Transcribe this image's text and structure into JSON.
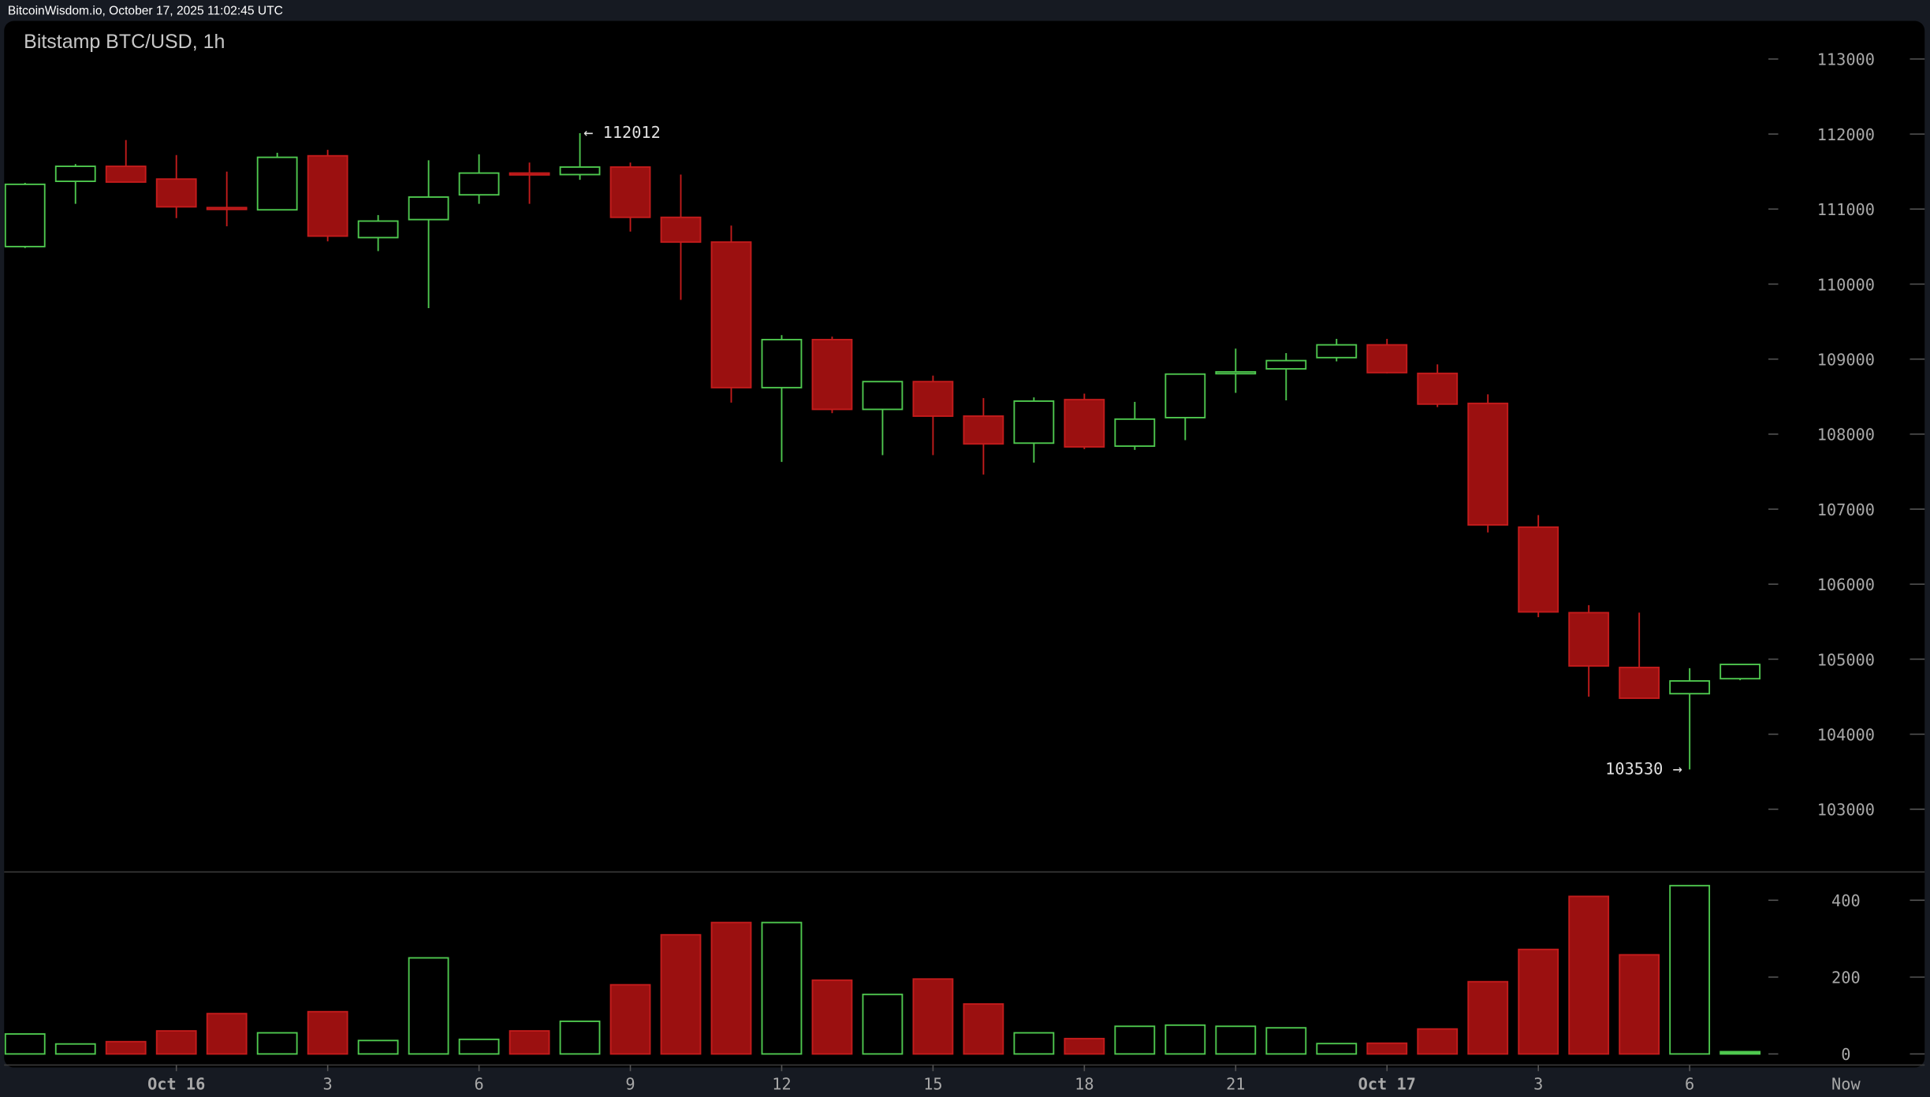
{
  "header": {
    "text": "BitcoinWisdom.io, October 17, 2025 11:02:45 UTC"
  },
  "chart_data": {
    "type": "candlestick",
    "title": "Bitstamp BTC/USD, 1h",
    "colors": {
      "up": "#4fc94f",
      "down": "#9b1010",
      "down_border": "#c41c1c",
      "background": "#000000",
      "frame": "#161a22"
    },
    "price_axis": {
      "ylim": [
        102500,
        113500
      ],
      "ticks": [
        113000,
        112000,
        111000,
        110000,
        109000,
        108000,
        107000,
        106000,
        105000,
        104000,
        103000
      ]
    },
    "volume_axis": {
      "ylim": [
        0,
        440
      ],
      "ticks": [
        400,
        200,
        0
      ]
    },
    "x_ticks": [
      {
        "label": "Oct 16",
        "index": 3
      },
      {
        "label": "3",
        "index": 6
      },
      {
        "label": "6",
        "index": 9
      },
      {
        "label": "9",
        "index": 12
      },
      {
        "label": "12",
        "index": 15
      },
      {
        "label": "15",
        "index": 18
      },
      {
        "label": "18",
        "index": 21
      },
      {
        "label": "21",
        "index": 24
      },
      {
        "label": "Oct 17",
        "index": 27
      },
      {
        "label": "3",
        "index": 30
      },
      {
        "label": "6",
        "index": 33
      },
      {
        "label": "Now",
        "index": 36
      }
    ],
    "annotations": {
      "high": {
        "label": "← 112012",
        "value": 112012,
        "index": 11
      },
      "low": {
        "label": "103530 →",
        "value": 103530,
        "index": 33
      }
    },
    "candles": [
      {
        "o": 110500,
        "h": 111350,
        "l": 110480,
        "c": 111330,
        "v": 52
      },
      {
        "o": 111370,
        "h": 111600,
        "l": 111070,
        "c": 111570,
        "v": 26
      },
      {
        "o": 111570,
        "h": 111920,
        "l": 111360,
        "c": 111360,
        "v": 32
      },
      {
        "o": 111400,
        "h": 111720,
        "l": 110880,
        "c": 111030,
        "v": 60
      },
      {
        "o": 111020,
        "h": 111500,
        "l": 110770,
        "c": 111000,
        "v": 105
      },
      {
        "o": 110990,
        "h": 111750,
        "l": 110990,
        "c": 111690,
        "v": 55
      },
      {
        "o": 111710,
        "h": 111790,
        "l": 110570,
        "c": 110640,
        "v": 110
      },
      {
        "o": 110620,
        "h": 110920,
        "l": 110440,
        "c": 110840,
        "v": 35
      },
      {
        "o": 110860,
        "h": 111650,
        "l": 109680,
        "c": 111160,
        "v": 250
      },
      {
        "o": 111190,
        "h": 111730,
        "l": 111070,
        "c": 111480,
        "v": 38
      },
      {
        "o": 111480,
        "h": 111620,
        "l": 111070,
        "c": 111460,
        "v": 60
      },
      {
        "o": 111460,
        "h": 112012,
        "l": 111390,
        "c": 111560,
        "v": 85
      },
      {
        "o": 111560,
        "h": 111620,
        "l": 110700,
        "c": 110890,
        "v": 180
      },
      {
        "o": 110890,
        "h": 111460,
        "l": 109790,
        "c": 110560,
        "v": 310
      },
      {
        "o": 110560,
        "h": 110780,
        "l": 108420,
        "c": 108620,
        "v": 342
      },
      {
        "o": 108620,
        "h": 109320,
        "l": 107630,
        "c": 109260,
        "v": 342
      },
      {
        "o": 109260,
        "h": 109300,
        "l": 108280,
        "c": 108330,
        "v": 192
      },
      {
        "o": 108330,
        "h": 108700,
        "l": 107720,
        "c": 108700,
        "v": 155
      },
      {
        "o": 108700,
        "h": 108780,
        "l": 107720,
        "c": 108240,
        "v": 195
      },
      {
        "o": 108240,
        "h": 108480,
        "l": 107460,
        "c": 107870,
        "v": 130
      },
      {
        "o": 107880,
        "h": 108490,
        "l": 107620,
        "c": 108440,
        "v": 55
      },
      {
        "o": 108460,
        "h": 108540,
        "l": 107800,
        "c": 107830,
        "v": 40
      },
      {
        "o": 107840,
        "h": 108430,
        "l": 107790,
        "c": 108200,
        "v": 72
      },
      {
        "o": 108220,
        "h": 108800,
        "l": 107920,
        "c": 108800,
        "v": 75
      },
      {
        "o": 108810,
        "h": 109140,
        "l": 108550,
        "c": 108830,
        "v": 72
      },
      {
        "o": 108870,
        "h": 109080,
        "l": 108450,
        "c": 108980,
        "v": 68
      },
      {
        "o": 109020,
        "h": 109270,
        "l": 108970,
        "c": 109190,
        "v": 27
      },
      {
        "o": 109190,
        "h": 109270,
        "l": 108810,
        "c": 108820,
        "v": 28
      },
      {
        "o": 108810,
        "h": 108930,
        "l": 108360,
        "c": 108400,
        "v": 65
      },
      {
        "o": 108410,
        "h": 108530,
        "l": 106690,
        "c": 106790,
        "v": 188
      },
      {
        "o": 106760,
        "h": 106920,
        "l": 105560,
        "c": 105630,
        "v": 272
      },
      {
        "o": 105620,
        "h": 105720,
        "l": 104500,
        "c": 104910,
        "v": 410
      },
      {
        "o": 104890,
        "h": 105620,
        "l": 104480,
        "c": 104480,
        "v": 258
      },
      {
        "o": 104540,
        "h": 104880,
        "l": 103530,
        "c": 104710,
        "v": 438
      },
      {
        "o": 104740,
        "h": 104930,
        "l": 104720,
        "c": 104930,
        "v": 6
      }
    ]
  }
}
